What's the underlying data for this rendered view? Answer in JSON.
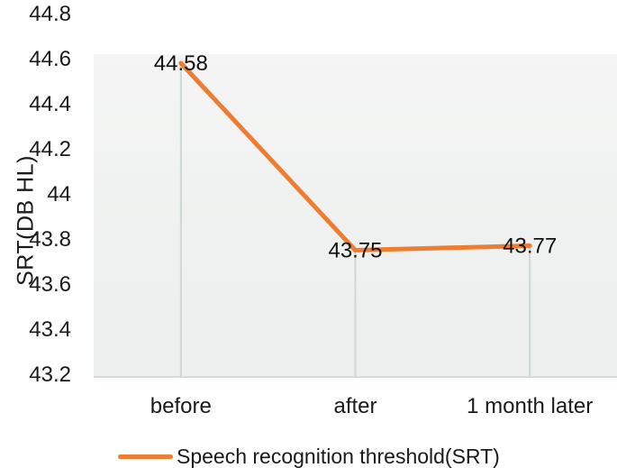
{
  "chart_data": {
    "type": "line",
    "title": "",
    "ylabel": "SRT(DB HL)",
    "xlabel": "",
    "categories": [
      "before",
      "after",
      "1 month later"
    ],
    "series": [
      {
        "name": "Speech recognition threshold(SRT)",
        "values": [
          44.58,
          43.75,
          43.77
        ],
        "color": "#ED7D31"
      }
    ],
    "data_labels": [
      "44.58",
      "43.75",
      "43.77"
    ],
    "ylim": [
      43.2,
      44.8
    ],
    "ytick_values": [
      44.8,
      44.6,
      44.4,
      44.2,
      44.0,
      43.8,
      43.6,
      43.4,
      43.2
    ],
    "ytick_labels": [
      "44.8",
      "44.6",
      "44.4",
      "44.2",
      "44",
      "43.8",
      "43.6",
      "43.4",
      "43.2"
    ],
    "grid": "vertical-drop-lines-only",
    "legend_position": "bottom-left",
    "colors": {
      "accent_line": "#ED7D31",
      "drop_line": "#cdd7d3",
      "plot_band": "#f0f2f1",
      "axis_line": "#d5dbd8"
    }
  }
}
